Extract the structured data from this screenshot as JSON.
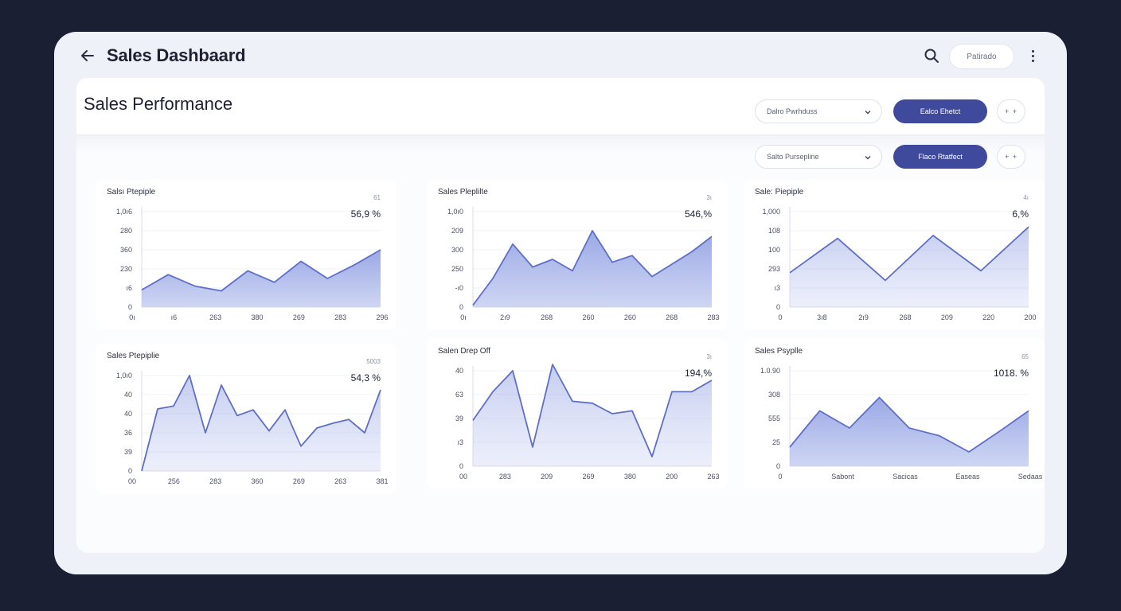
{
  "header": {
    "title": "Sales Dashbaard",
    "pill_label": "Patirado"
  },
  "panel": {
    "title": "Sales Performance"
  },
  "controls": [
    {
      "select_label": "Dalro Pwrhduss",
      "button_label": "Ealco  Ehetct",
      "plus_label": "+ +"
    },
    {
      "select_label": "Salto Pursepline",
      "button_label": "Flaco Rtatfect",
      "plus_label": "+ +"
    }
  ],
  "colors": {
    "accent": "#3f4a9c",
    "line": "#5f6fc6",
    "fill_top": "#95a4e4",
    "fill_bottom": "#c9d1f2"
  },
  "icons": {
    "back": "arrow-left-icon",
    "search": "search-icon",
    "more": "kebab-menu-icon",
    "dropdown": "chevron-down-icon"
  },
  "chart_data": [
    {
      "type": "area",
      "title": "Salsı Ptepiple",
      "tag": "61",
      "value_label": "56,9 %",
      "ylabels": [
        "1,0ı6",
        "280",
        "360",
        "230",
        "ı6",
        "0"
      ],
      "xlabels": [
        "0ı",
        "ı6",
        "263",
        "380",
        "269",
        "283",
        "296"
      ],
      "y_axis_range": [
        0,
        100
      ],
      "grid": true,
      "values": [
        18,
        34,
        22,
        17,
        38,
        26,
        48,
        30,
        44,
        60
      ],
      "fill_style": "solid"
    },
    {
      "type": "area",
      "title": "Sales Pleplilte",
      "tag": "3ı",
      "value_label": "546,%",
      "ylabels": [
        "1,0ı0",
        "209",
        "300",
        "250",
        "-ı0",
        "0"
      ],
      "xlabels": [
        "0ı",
        "2ı9",
        "268",
        "260",
        "260",
        "268",
        "283"
      ],
      "y_axis_range": [
        0,
        100
      ],
      "grid": true,
      "values": [
        2,
        30,
        66,
        42,
        50,
        38,
        80,
        47,
        54,
        32,
        45,
        58,
        74
      ],
      "fill_style": "solid"
    },
    {
      "type": "area",
      "title": "Sale: Piepiple",
      "tag": "4ı",
      "value_label": "6,%",
      "ylabels": [
        "1,000",
        "108",
        "100",
        "293",
        "ı3",
        "0"
      ],
      "xlabels": [
        "0",
        "3ı8",
        "2ı9",
        "268",
        "209",
        "220",
        "200"
      ],
      "y_axis_range": [
        0,
        100
      ],
      "grid": true,
      "values": [
        36,
        72,
        28,
        75,
        38,
        84
      ],
      "fill_style": "faded"
    },
    {
      "type": "area",
      "title": "Sales Ptepiplie",
      "tag": "5003",
      "value_label": "54,3 %",
      "ylabels": [
        "1,0ı0",
        "40",
        "40",
        "36",
        "39",
        "0"
      ],
      "xlabels": [
        "00",
        "256",
        "283",
        "360",
        "269",
        "263",
        "381"
      ],
      "y_axis_range": [
        0,
        100
      ],
      "grid": true,
      "values": [
        0,
        65,
        68,
        100,
        40,
        90,
        58,
        64,
        42,
        64,
        26,
        45,
        50,
        54,
        40,
        85
      ],
      "fill_style": "faded"
    },
    {
      "type": "area",
      "title": "Salen Drep Off",
      "tag": "3ı",
      "value_label": "194,%",
      "ylabels": [
        "40",
        "63",
        "39",
        "ı3",
        "0"
      ],
      "xlabels": [
        "00",
        "283",
        "209",
        "269",
        "380",
        "200",
        "263"
      ],
      "y_axis_range": [
        0,
        100
      ],
      "grid": true,
      "values": [
        48,
        78,
        100,
        20,
        108,
        68,
        66,
        55,
        58,
        10,
        78,
        78,
        90
      ],
      "fill_style": "faded"
    },
    {
      "type": "area",
      "title": "Sales Psyplle",
      "tag": "65",
      "value_label": "1018. %",
      "ylabels": [
        "1.0.90",
        "308",
        "555",
        "25",
        "0"
      ],
      "xlabels": [
        "0",
        "Sabont",
        "Sacicas",
        "Easeas",
        "Sedaas"
      ],
      "y_axis_range": [
        0,
        100
      ],
      "grid": true,
      "values": [
        20,
        58,
        40,
        72,
        40,
        32,
        15,
        36,
        58
      ],
      "fill_style": "solid"
    }
  ]
}
